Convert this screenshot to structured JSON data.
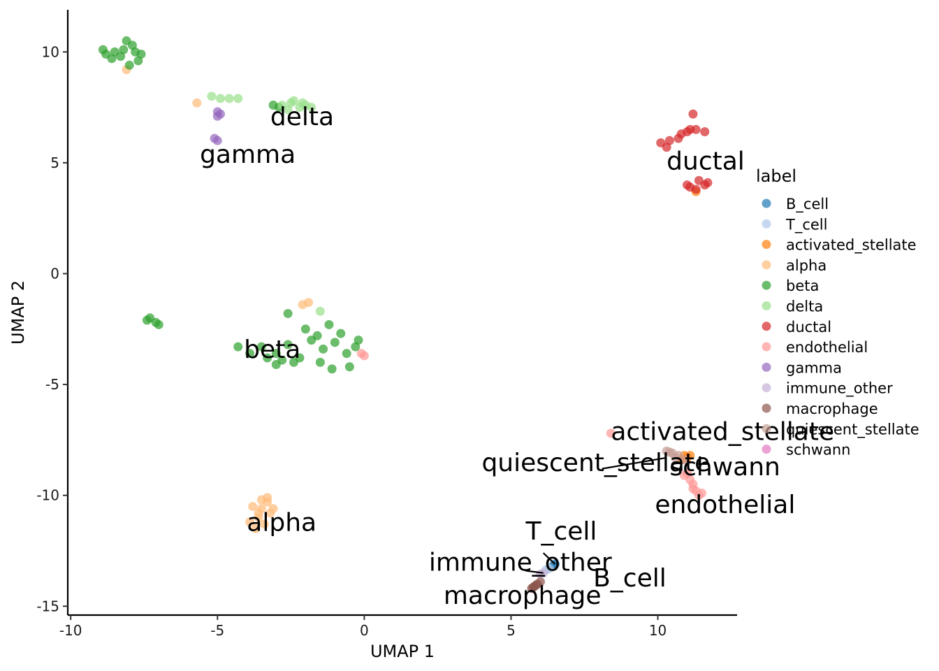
{
  "chart_data": {
    "type": "scatter",
    "xlabel": "UMAP 1",
    "ylabel": "UMAP 2",
    "xlim": [
      -10.1,
      12.7
    ],
    "ylim": [
      -15.4,
      11.9
    ],
    "xticks": [
      -10,
      -5,
      0,
      5,
      10
    ],
    "xtick_labels": [
      "-10",
      "-5",
      "0",
      "5",
      "10"
    ],
    "yticks": [
      10,
      5,
      0,
      -5,
      -10,
      -15
    ],
    "ytick_labels": [
      "10",
      "5",
      "0",
      "-5",
      "-10",
      "-15"
    ],
    "grid": false,
    "legend": {
      "title": "label",
      "position": "right"
    },
    "series": [
      {
        "name": "B_cell",
        "color": "#1f77b4",
        "points": [
          [
            6.5,
            -13.1
          ],
          [
            6.45,
            -13.15
          ]
        ]
      },
      {
        "name": "T_cell",
        "color": "#aec7e8",
        "points": [
          [
            6.3,
            -13.3
          ],
          [
            6.2,
            -13.35
          ]
        ]
      },
      {
        "name": "activated_stellate",
        "color": "#ff7f0e",
        "points": [
          [
            10.9,
            -8.2
          ],
          [
            11.1,
            -8.2
          ],
          [
            10.8,
            -8.4
          ],
          [
            11.3,
            3.7
          ],
          [
            11.0,
            -8.3
          ]
        ]
      },
      {
        "name": "alpha",
        "color": "#ffbb78",
        "points": [
          [
            -3.3,
            -10.3
          ],
          [
            -3.5,
            -10.6
          ],
          [
            -3.6,
            -11.0
          ],
          [
            -3.4,
            -11.3
          ],
          [
            -3.7,
            -11.5
          ],
          [
            -3.2,
            -10.8
          ],
          [
            -3.8,
            -10.5
          ],
          [
            -3.3,
            -10.1
          ],
          [
            -3.1,
            -10.6
          ],
          [
            -3.5,
            -10.2
          ],
          [
            -3.9,
            -11.2
          ],
          [
            -3.6,
            -10.8
          ],
          [
            -5.7,
            7.7
          ],
          [
            -2.1,
            -1.4
          ],
          [
            -1.9,
            -1.3
          ],
          [
            -8.1,
            9.2
          ]
        ]
      },
      {
        "name": "beta",
        "color": "#2ca02c",
        "points": [
          [
            -8.8,
            9.9
          ],
          [
            -8.5,
            10.0
          ],
          [
            -8.2,
            10.1
          ],
          [
            -7.9,
            10.3
          ],
          [
            -7.7,
            9.6
          ],
          [
            -8.6,
            9.7
          ],
          [
            -8.0,
            9.4
          ],
          [
            -8.3,
            9.8
          ],
          [
            -7.8,
            10.0
          ],
          [
            -8.9,
            10.1
          ],
          [
            -8.1,
            10.5
          ],
          [
            -7.6,
            9.9
          ],
          [
            -3.1,
            7.6
          ],
          [
            -2.9,
            7.5
          ],
          [
            -7.3,
            -2.0
          ],
          [
            -7.1,
            -2.2
          ],
          [
            -7.4,
            -2.1
          ],
          [
            -7.0,
            -2.3
          ],
          [
            -3.5,
            -3.3
          ],
          [
            -3.0,
            -3.6
          ],
          [
            -2.6,
            -3.2
          ],
          [
            -2.2,
            -3.8
          ],
          [
            -1.8,
            -3.0
          ],
          [
            -1.4,
            -3.4
          ],
          [
            -1.0,
            -3.1
          ],
          [
            -0.6,
            -3.6
          ],
          [
            -0.3,
            -3.3
          ],
          [
            -0.8,
            -2.7
          ],
          [
            -1.2,
            -2.3
          ],
          [
            -1.6,
            -2.8
          ],
          [
            -2.4,
            -4.0
          ],
          [
            -2.8,
            -3.9
          ],
          [
            -3.3,
            -3.8
          ],
          [
            -4.3,
            -3.3
          ],
          [
            -3.9,
            -3.6
          ],
          [
            -0.5,
            -4.2
          ],
          [
            -2.6,
            -1.8
          ],
          [
            -2.0,
            -2.5
          ],
          [
            -1.5,
            -4.0
          ],
          [
            -0.2,
            -3.0
          ],
          [
            -3.0,
            -4.1
          ],
          [
            -1.1,
            -4.3
          ]
        ]
      },
      {
        "name": "delta",
        "color": "#98df8a",
        "points": [
          [
            -2.8,
            7.6
          ],
          [
            -2.5,
            7.7
          ],
          [
            -2.2,
            7.5
          ],
          [
            -2.0,
            7.6
          ],
          [
            -1.8,
            7.5
          ],
          [
            -2.4,
            7.8
          ],
          [
            -2.6,
            7.4
          ],
          [
            -2.1,
            7.7
          ],
          [
            -4.9,
            7.9
          ],
          [
            -4.6,
            7.9
          ],
          [
            -4.3,
            7.9
          ],
          [
            -5.2,
            8.0
          ],
          [
            -1.5,
            -1.7
          ]
        ]
      },
      {
        "name": "ductal",
        "color": "#d62728",
        "points": [
          [
            10.1,
            5.9
          ],
          [
            10.4,
            6.0
          ],
          [
            10.7,
            6.1
          ],
          [
            11.0,
            6.4
          ],
          [
            11.3,
            6.5
          ],
          [
            11.6,
            6.4
          ],
          [
            10.3,
            5.7
          ],
          [
            10.8,
            6.3
          ],
          [
            11.1,
            6.5
          ],
          [
            11.2,
            7.2
          ],
          [
            11.0,
            4.0
          ],
          [
            11.3,
            3.8
          ],
          [
            11.6,
            4.0
          ],
          [
            11.4,
            4.2
          ],
          [
            11.1,
            3.9
          ],
          [
            11.7,
            4.1
          ]
        ]
      },
      {
        "name": "endothelial",
        "color": "#ff9896",
        "points": [
          [
            11.0,
            -9.0
          ],
          [
            11.2,
            -9.5
          ],
          [
            11.4,
            -10.0
          ],
          [
            11.3,
            -9.8
          ],
          [
            11.1,
            -9.3
          ],
          [
            10.9,
            -9.1
          ],
          [
            11.5,
            -9.9
          ],
          [
            11.2,
            -9.7
          ],
          [
            8.4,
            -7.2
          ],
          [
            0.0,
            -3.7
          ],
          [
            -0.1,
            -3.6
          ]
        ]
      },
      {
        "name": "gamma",
        "color": "#9467bd",
        "points": [
          [
            -5.0,
            7.3
          ],
          [
            -4.9,
            7.2
          ],
          [
            -5.0,
            7.1
          ],
          [
            -5.1,
            6.1
          ],
          [
            -5.0,
            6.0
          ]
        ]
      },
      {
        "name": "immune_other",
        "color": "#c5b0d5",
        "points": [
          [
            6.1,
            -13.5
          ],
          [
            6.0,
            -13.55
          ]
        ]
      },
      {
        "name": "macrophage",
        "color": "#8c564b",
        "points": [
          [
            5.7,
            -14.2
          ],
          [
            5.8,
            -14.1
          ],
          [
            5.9,
            -14.0
          ],
          [
            6.0,
            -13.9
          ],
          [
            5.75,
            -14.15
          ],
          [
            5.85,
            -14.05
          ]
        ]
      },
      {
        "name": "quiescent_stellate",
        "color": "#c49c94",
        "points": [
          [
            10.3,
            -8.0
          ],
          [
            10.5,
            -8.1
          ],
          [
            10.7,
            -8.2
          ],
          [
            10.9,
            -8.4
          ],
          [
            10.6,
            -8.3
          ],
          [
            10.4,
            -8.05
          ]
        ]
      },
      {
        "name": "schwann",
        "color": "#e377c2",
        "points": []
      }
    ],
    "annotations": [
      {
        "text": "delta",
        "x": -3.2,
        "y": 6.7
      },
      {
        "text": "gamma",
        "x": -5.6,
        "y": 5.0
      },
      {
        "text": "ductal",
        "x": 10.3,
        "y": 4.7
      },
      {
        "text": "beta",
        "x": -4.1,
        "y": -3.8
      },
      {
        "text": "activated_stellate",
        "x": 8.4,
        "y": -7.5
      },
      {
        "text": "quiescent_stellate",
        "x": 4.0,
        "y": -8.9
      },
      {
        "text": "schwann",
        "x": 10.4,
        "y": -9.1
      },
      {
        "text": "endothelial",
        "x": 9.9,
        "y": -10.8
      },
      {
        "text": "alpha",
        "x": -4.0,
        "y": -11.6
      },
      {
        "text": "T_cell",
        "x": 5.5,
        "y": -12.0
      },
      {
        "text": "immune_other",
        "x": 2.2,
        "y": -13.4
      },
      {
        "text": "B_cell",
        "x": 7.8,
        "y": -14.1
      },
      {
        "text": "macrophage",
        "x": 2.7,
        "y": -14.9
      }
    ],
    "leader_lines": [
      {
        "from": [
          8.1,
          -8.8
        ],
        "to": [
          10.3,
          -8.3
        ]
      },
      {
        "from": [
          6.1,
          -12.6
        ],
        "to": [
          6.5,
          -13.1
        ]
      },
      {
        "from": [
          5.5,
          -13.4
        ],
        "to": [
          6.1,
          -13.5
        ]
      }
    ]
  }
}
